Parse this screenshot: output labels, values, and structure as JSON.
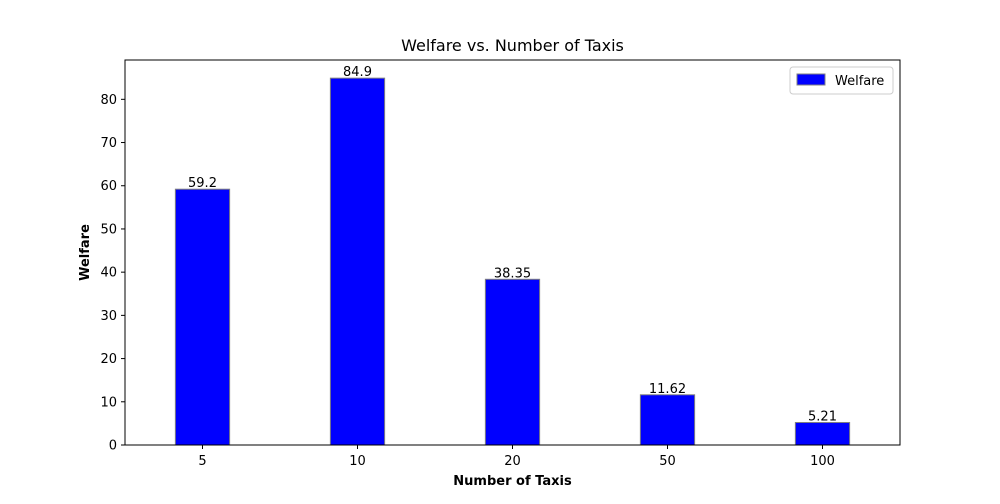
{
  "chart_data": {
    "type": "bar",
    "title": "Welfare vs. Number of Taxis",
    "xlabel": "Number of Taxis",
    "ylabel": "Welfare",
    "categories": [
      "5",
      "10",
      "20",
      "50",
      "100"
    ],
    "series": [
      {
        "name": "Welfare",
        "values": [
          59.2,
          84.9,
          38.35,
          11.62,
          5.21
        ],
        "value_labels": [
          "59.2",
          "84.9",
          "38.35",
          "11.62",
          "5.21"
        ],
        "color": "#0000ff",
        "edge_color": "#808080"
      }
    ],
    "ylim": [
      0,
      89.1
    ],
    "yticks": [
      0,
      10,
      20,
      30,
      40,
      50,
      60,
      70,
      80
    ],
    "grid": false,
    "legend": "top-right"
  }
}
